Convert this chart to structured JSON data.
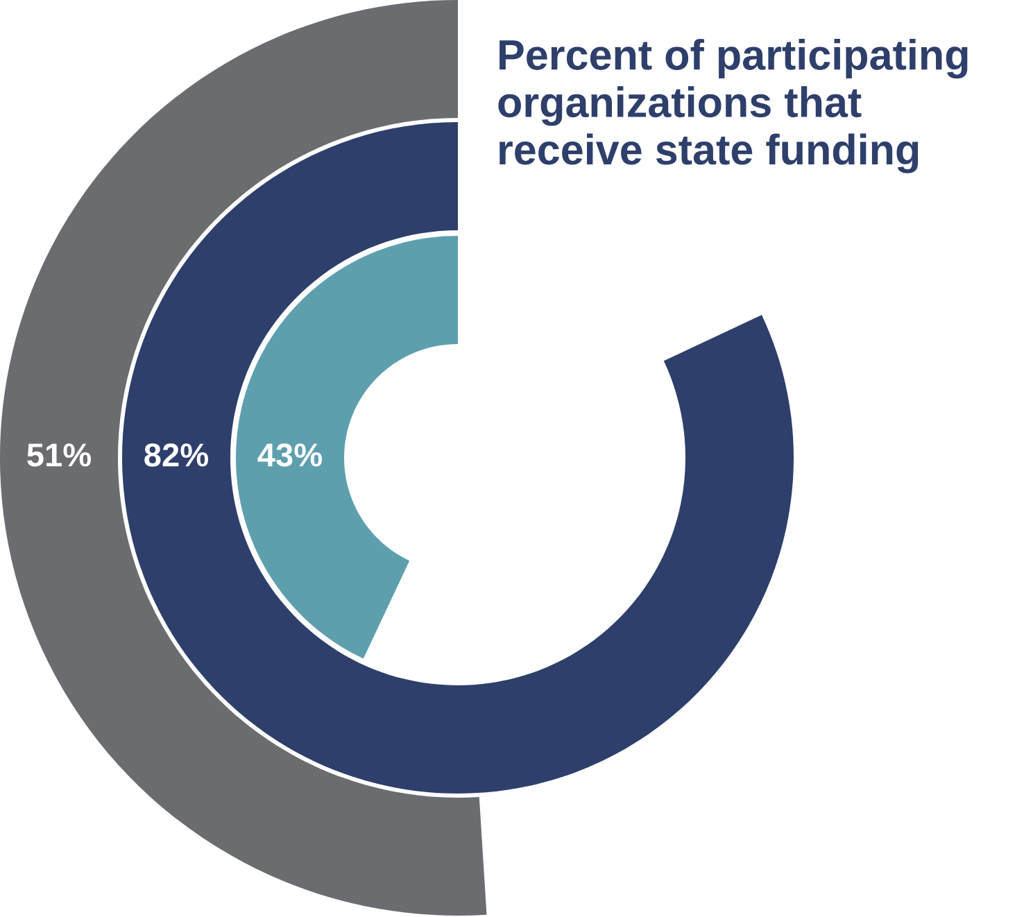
{
  "chart_data": {
    "type": "other",
    "title": "Percent of participating\norganizations that\nreceive state funding",
    "values": [
      51,
      82,
      43
    ],
    "colors": [
      "#6b6c70",
      "#2e3f6b",
      "#5e9fae"
    ],
    "value_labels": [
      "51%",
      "82%",
      "43%"
    ]
  }
}
